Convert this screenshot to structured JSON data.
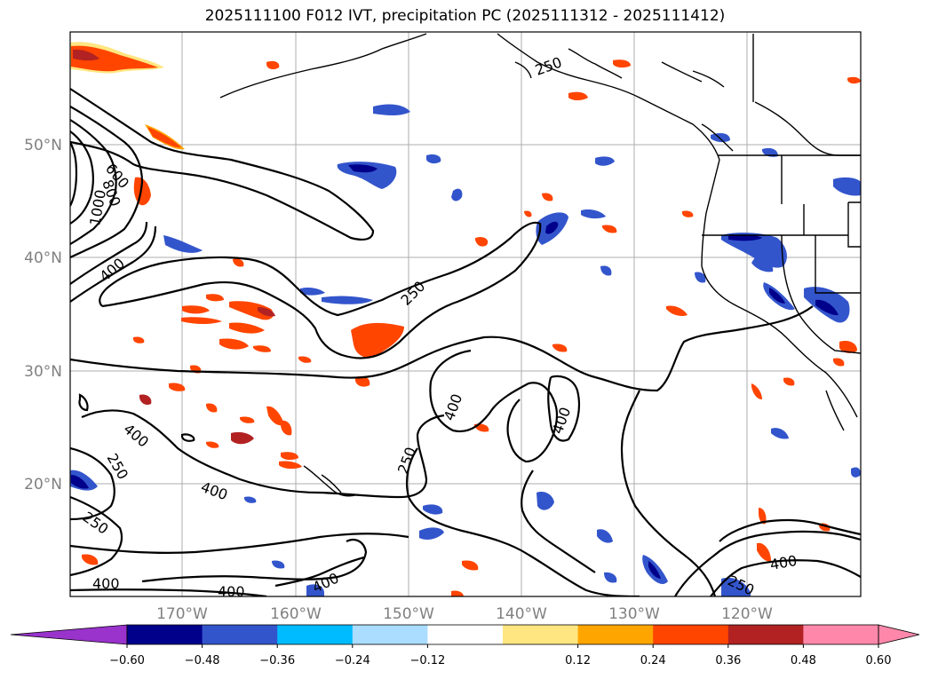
{
  "title": "2025111100 F012 IVT, precipitation PC (2025111312 - 2025111412)",
  "lat_labels": [
    "50°N",
    "40°N",
    "30°N",
    "20°N"
  ],
  "lon_labels": [
    "170°W",
    "160°W",
    "150°W",
    "140°W",
    "130°W",
    "120°W"
  ],
  "contour_labels": [
    "250",
    "600",
    "800",
    "1000",
    "400",
    "250",
    "400",
    "400",
    "250",
    "400",
    "250",
    "400",
    "250",
    "400",
    "400",
    "400",
    "250",
    "400"
  ],
  "colorbar": {
    "ticks": [
      "−0.60",
      "−0.48",
      "−0.36",
      "−0.24",
      "−0.12",
      "0.12",
      "0.24",
      "0.36",
      "0.48",
      "0.60"
    ],
    "colors": [
      "#9933cc",
      "#00008b",
      "#3355cc",
      "#00bbff",
      "#aaddff",
      "#ffffff",
      "#ffe680",
      "#ffa500",
      "#ff4500",
      "#b22222",
      "#ff88aa",
      "#ff88aa"
    ]
  },
  "colors": {
    "grid": "#999999",
    "contour": "#000000",
    "label": "#808080"
  }
}
